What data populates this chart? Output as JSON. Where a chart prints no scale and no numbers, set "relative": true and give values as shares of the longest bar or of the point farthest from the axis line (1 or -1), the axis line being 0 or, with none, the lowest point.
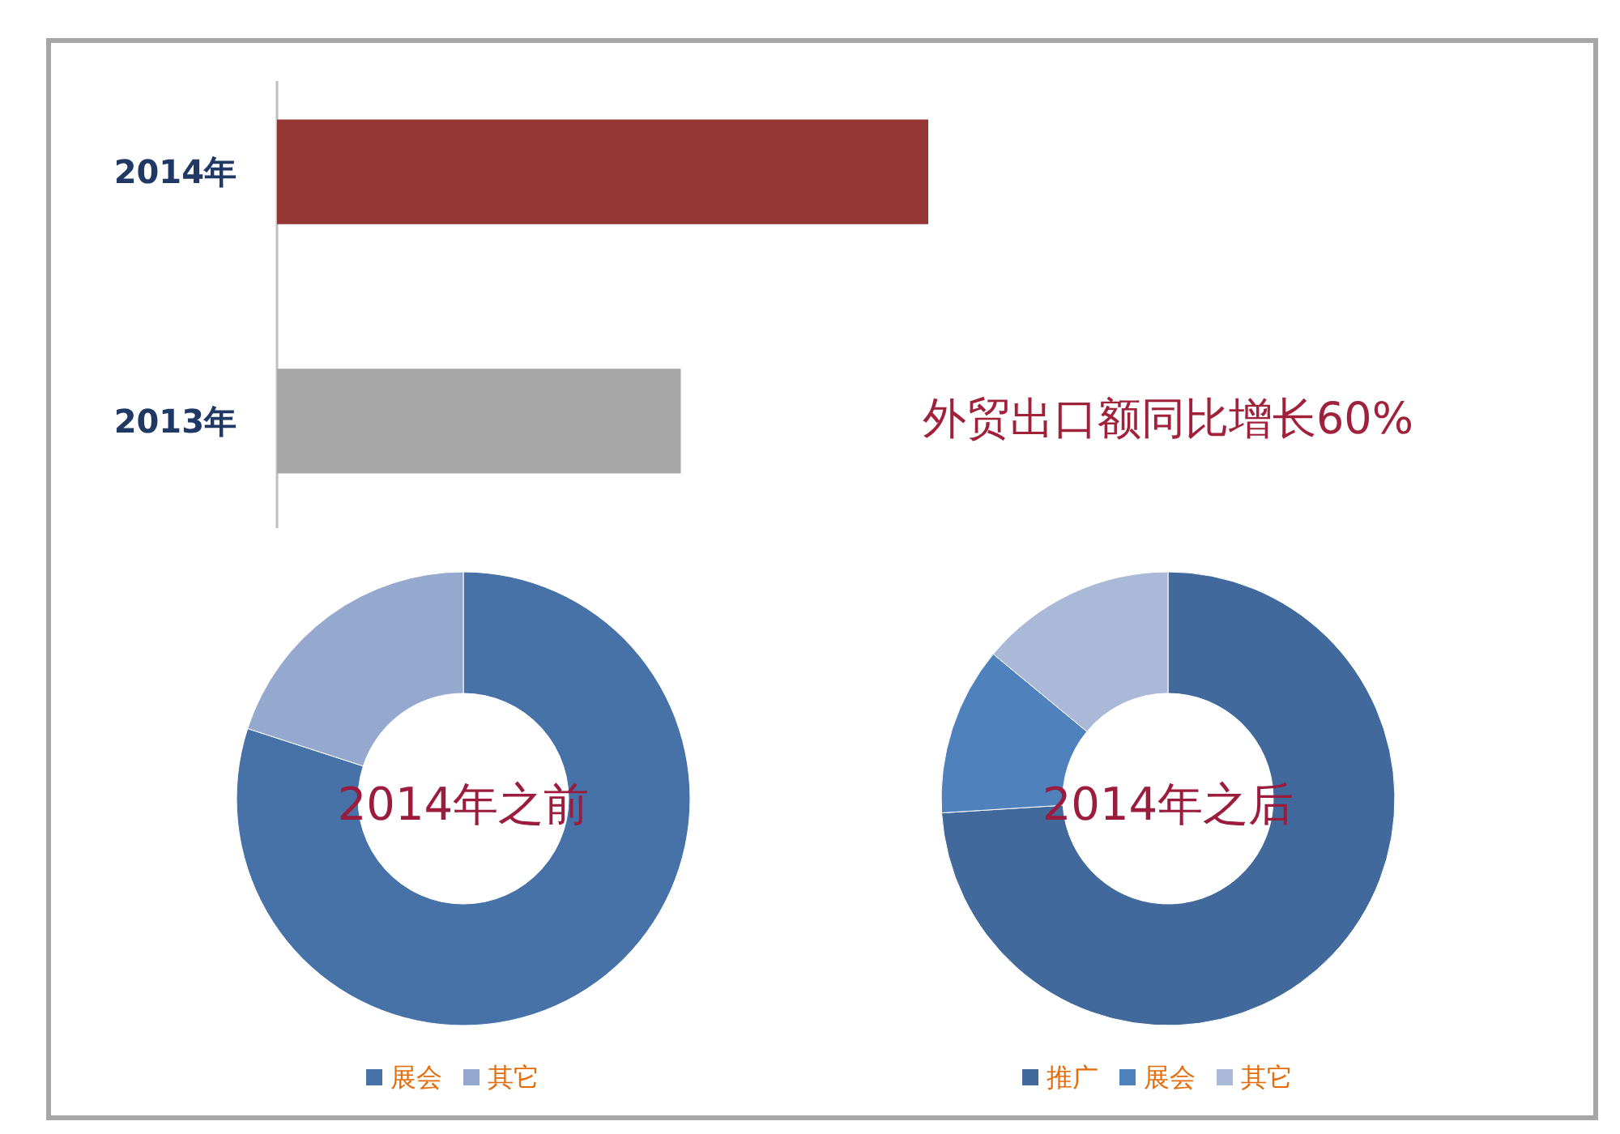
{
  "chart_data": [
    {
      "type": "bar",
      "orientation": "horizontal",
      "relative": true,
      "categories": [
        "2014年",
        "2013年"
      ],
      "values": [
        1,
        0.62
      ],
      "colors": [
        "#943634",
        "#a6a6a6"
      ],
      "annotations": [
        "外贸出口额同比增长60%"
      ]
    },
    {
      "type": "donut",
      "title": "2014年之前",
      "categories": [
        "展会",
        "其它"
      ],
      "values": [
        80,
        20
      ],
      "colors": [
        "#4672a8",
        "#95a9cf"
      ],
      "legend": "bottom"
    },
    {
      "type": "donut",
      "title": "2014年之后",
      "categories": [
        "推广",
        "展会",
        "其它"
      ],
      "values": [
        74,
        12,
        14
      ],
      "colors": [
        "#41699c",
        "#4f81bd",
        "#aab9d8"
      ],
      "legend": "bottom"
    }
  ]
}
